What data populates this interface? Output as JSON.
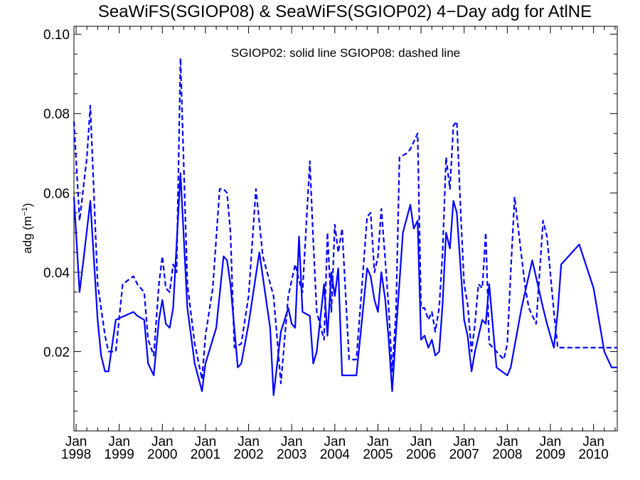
{
  "chart_data": {
    "type": "line",
    "title": "SeaWiFS(SGIOP08) & SeaWiFS(SGIOP02) 4−Day adg for AtlNE",
    "ylabel_main": "adg (m",
    "ylabel_sup": "−1",
    "ylabel_end": ")",
    "xlabel": "",
    "annotation": "SGIOP02: solid line   SGIOP08: dashed line",
    "ylim": [
      0.0,
      0.102
    ],
    "xlim": [
      1997.95,
      2010.55
    ],
    "y_ticks": [
      {
        "value": 0.02,
        "label": "0.02"
      },
      {
        "value": 0.04,
        "label": "0.04"
      },
      {
        "value": 0.06,
        "label": "0.06"
      },
      {
        "value": 0.08,
        "label": "0.08"
      },
      {
        "value": 0.1,
        "label": "0.10"
      }
    ],
    "x_ticks": [
      {
        "value": 1998,
        "month": "Jan",
        "year": "1998"
      },
      {
        "value": 1999,
        "month": "Jan",
        "year": "1999"
      },
      {
        "value": 2000,
        "month": "Jan",
        "year": "2000"
      },
      {
        "value": 2001,
        "month": "Jan",
        "year": "2001"
      },
      {
        "value": 2002,
        "month": "Jan",
        "year": "2002"
      },
      {
        "value": 2003,
        "month": "Jan",
        "year": "2003"
      },
      {
        "value": 2004,
        "month": "Jan",
        "year": "2004"
      },
      {
        "value": 2005,
        "month": "Jan",
        "year": "2005"
      },
      {
        "value": 2006,
        "month": "Jan",
        "year": "2006"
      },
      {
        "value": 2007,
        "month": "Jan",
        "year": "2007"
      },
      {
        "value": 2008,
        "month": "Jan",
        "year": "2008"
      },
      {
        "value": 2009,
        "month": "Jan",
        "year": "2009"
      },
      {
        "value": 2010,
        "month": "Jan",
        "year": "2010"
      }
    ],
    "grid": false,
    "color": "#0000ff",
    "series": [
      {
        "name": "SGIOP02",
        "style": "solid",
        "x": [
          1997.95,
          1998.08,
          1998.17,
          1998.33,
          1998.5,
          1998.58,
          1998.67,
          1998.75,
          1998.92,
          1999.33,
          1999.42,
          1999.58,
          1999.67,
          1999.8,
          1999.92,
          2000.0,
          2000.08,
          2000.17,
          2000.25,
          2000.42,
          2000.58,
          2000.75,
          2000.92,
          2001.0,
          2001.25,
          2001.42,
          2001.5,
          2001.58,
          2001.75,
          2001.83,
          2002.0,
          2002.25,
          2002.5,
          2002.58,
          2002.75,
          2002.92,
          2003.0,
          2003.08,
          2003.17,
          2003.25,
          2003.42,
          2003.5,
          2003.58,
          2003.75,
          2003.83,
          2003.92,
          2004.0,
          2004.08,
          2004.17,
          2004.33,
          2004.5,
          2004.75,
          2004.83,
          2004.92,
          2005.0,
          2005.08,
          2005.17,
          2005.25,
          2005.33,
          2005.42,
          2005.58,
          2005.75,
          2005.83,
          2005.92,
          2006.0,
          2006.08,
          2006.17,
          2006.25,
          2006.33,
          2006.42,
          2006.5,
          2006.58,
          2006.67,
          2006.75,
          2006.83,
          2007.0,
          2007.08,
          2007.17,
          2007.25,
          2007.42,
          2007.5,
          2007.58,
          2007.75,
          2008.0,
          2008.08,
          2008.33,
          2008.58,
          2008.83,
          2008.92,
          2009.08,
          2009.17,
          2009.25,
          2009.67,
          2010.0,
          2010.25,
          2010.42,
          2010.55
        ],
        "y": [
          0.059,
          0.035,
          0.043,
          0.058,
          0.028,
          0.019,
          0.015,
          0.015,
          0.028,
          0.03,
          0.029,
          0.028,
          0.017,
          0.014,
          0.028,
          0.033,
          0.027,
          0.026,
          0.031,
          0.065,
          0.031,
          0.017,
          0.01,
          0.017,
          0.026,
          0.044,
          0.043,
          0.037,
          0.016,
          0.017,
          0.027,
          0.045,
          0.026,
          0.009,
          0.025,
          0.031,
          0.027,
          0.026,
          0.049,
          0.03,
          0.029,
          0.017,
          0.02,
          0.037,
          0.024,
          0.04,
          0.034,
          0.041,
          0.014,
          0.014,
          0.014,
          0.041,
          0.039,
          0.033,
          0.03,
          0.04,
          0.033,
          0.023,
          0.01,
          0.025,
          0.05,
          0.057,
          0.051,
          0.053,
          0.023,
          0.024,
          0.021,
          0.023,
          0.019,
          0.02,
          0.032,
          0.05,
          0.046,
          0.058,
          0.055,
          0.028,
          0.024,
          0.015,
          0.02,
          0.028,
          0.027,
          0.037,
          0.016,
          0.014,
          0.016,
          0.031,
          0.043,
          0.031,
          0.027,
          0.021,
          0.03,
          0.042,
          0.047,
          0.036,
          0.02,
          0.016,
          0.016
        ]
      },
      {
        "name": "SGIOP08",
        "style": "dashed",
        "x": [
          1997.95,
          1998.08,
          1998.25,
          1998.33,
          1998.5,
          1998.67,
          1998.75,
          1998.92,
          1999.08,
          1999.33,
          1999.42,
          1999.58,
          1999.67,
          1999.8,
          1999.92,
          2000.0,
          2000.08,
          2000.17,
          2000.25,
          2000.33,
          2000.42,
          2000.58,
          2000.75,
          2000.92,
          2001.0,
          2001.17,
          2001.33,
          2001.42,
          2001.5,
          2001.58,
          2001.67,
          2001.83,
          2002.0,
          2002.17,
          2002.33,
          2002.58,
          2002.75,
          2002.92,
          2003.08,
          2003.17,
          2003.25,
          2003.42,
          2003.5,
          2003.58,
          2003.75,
          2003.83,
          2003.92,
          2004.0,
          2004.08,
          2004.17,
          2004.33,
          2004.5,
          2004.75,
          2004.83,
          2004.92,
          2005.0,
          2005.08,
          2005.17,
          2005.25,
          2005.33,
          2005.42,
          2005.5,
          2005.67,
          2005.75,
          2005.92,
          2006.0,
          2006.08,
          2006.17,
          2006.25,
          2006.33,
          2006.42,
          2006.5,
          2006.58,
          2006.67,
          2006.75,
          2006.83,
          2006.92,
          2007.0,
          2007.08,
          2007.17,
          2007.25,
          2007.33,
          2007.42,
          2007.5,
          2007.58,
          2007.75,
          2007.92,
          2008.0,
          2008.08,
          2008.17,
          2008.33,
          2008.42,
          2008.5,
          2008.67,
          2008.83,
          2008.92,
          2009.08,
          2009.17,
          2009.25,
          2009.67,
          2010.0,
          2010.17,
          2010.42,
          2010.55
        ],
        "y": [
          0.078,
          0.053,
          0.069,
          0.082,
          0.037,
          0.024,
          0.02,
          0.02,
          0.037,
          0.039,
          0.037,
          0.035,
          0.023,
          0.019,
          0.037,
          0.044,
          0.036,
          0.035,
          0.042,
          0.04,
          0.094,
          0.037,
          0.022,
          0.013,
          0.024,
          0.036,
          0.061,
          0.061,
          0.06,
          0.05,
          0.021,
          0.022,
          0.034,
          0.061,
          0.044,
          0.034,
          0.012,
          0.034,
          0.042,
          0.038,
          0.035,
          0.068,
          0.048,
          0.03,
          0.023,
          0.05,
          0.03,
          0.052,
          0.045,
          0.051,
          0.018,
          0.018,
          0.054,
          0.055,
          0.04,
          0.044,
          0.056,
          0.043,
          0.031,
          0.015,
          0.03,
          0.069,
          0.07,
          0.071,
          0.075,
          0.031,
          0.031,
          0.028,
          0.03,
          0.025,
          0.031,
          0.045,
          0.069,
          0.061,
          0.077,
          0.078,
          0.055,
          0.037,
          0.032,
          0.02,
          0.027,
          0.037,
          0.036,
          0.05,
          0.022,
          0.02,
          0.018,
          0.022,
          0.04,
          0.059,
          0.044,
          0.036,
          0.031,
          0.027,
          0.053,
          0.049,
          0.03,
          0.021,
          0.021,
          0.021,
          0.021,
          0.021,
          0.021,
          0.021
        ]
      }
    ]
  }
}
